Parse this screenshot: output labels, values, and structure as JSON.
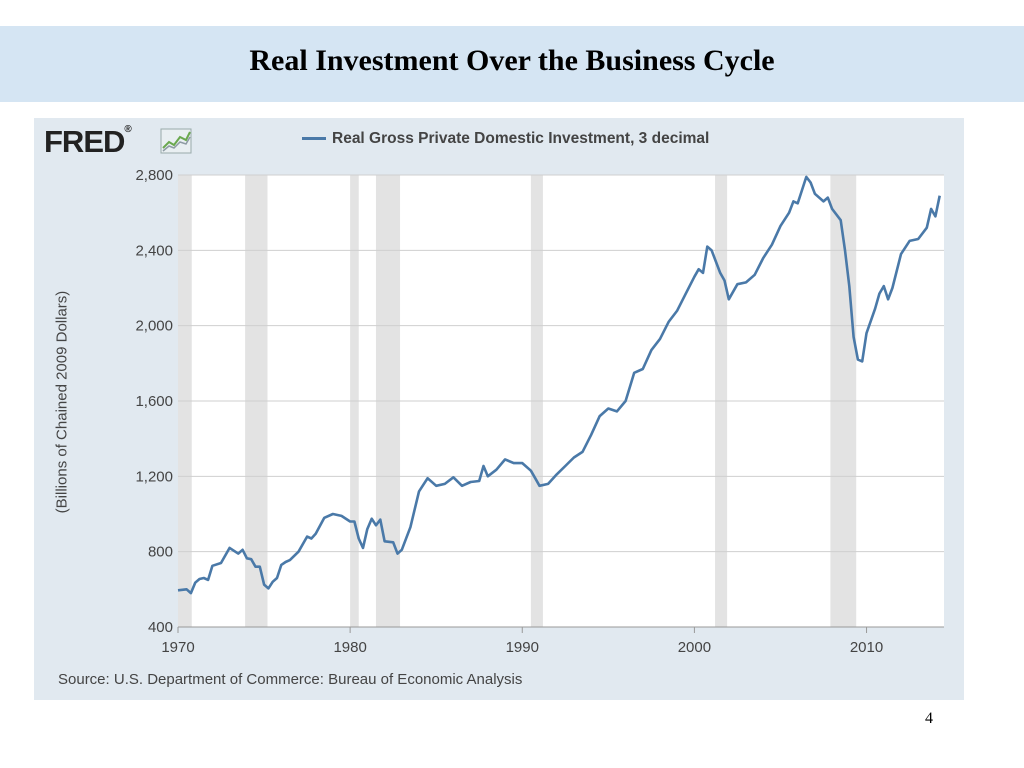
{
  "slide": {
    "title": "Real Investment Over the Business Cycle",
    "page_number": "4"
  },
  "logo": {
    "text": "FRED",
    "reg": "®"
  },
  "source": "Source: U.S. Department of Commerce: Bureau of Economic Analysis",
  "colors": {
    "header_bg": "#d5e5f3",
    "panel_bg": "#e1e9f0",
    "plot_bg": "#ffffff",
    "line": "#4a79a8",
    "recession": "#e3e3e3"
  },
  "chart_data": {
    "type": "line",
    "title": "",
    "xlabel": "",
    "ylabel": "(Billions of Chained 2009 Dollars)",
    "xlim": [
      1970,
      2014.5
    ],
    "ylim": [
      400,
      2800
    ],
    "x_ticks": [
      1970,
      1980,
      1990,
      2000,
      2010
    ],
    "x_tick_labels": [
      "1970",
      "1980",
      "1990",
      "2000",
      "2010"
    ],
    "y_ticks": [
      400,
      800,
      1200,
      1600,
      2000,
      2400,
      2800
    ],
    "y_tick_labels": [
      "400",
      "800",
      "1,200",
      "1,600",
      "2,000",
      "2,400",
      "2,800"
    ],
    "grid": "horizontal",
    "legend": "top",
    "recessions": [
      [
        1970.0,
        1970.8
      ],
      [
        1973.9,
        1975.2
      ],
      [
        1980.0,
        1980.5
      ],
      [
        1981.5,
        1982.9
      ],
      [
        1990.5,
        1991.2
      ],
      [
        2001.2,
        2001.9
      ],
      [
        2007.9,
        2009.4
      ]
    ],
    "series": [
      {
        "name": "Real Gross Private Domestic Investment, 3 decimal",
        "x": [
          1970.0,
          1970.5,
          1970.75,
          1971.0,
          1971.25,
          1971.5,
          1971.75,
          1972.0,
          1972.5,
          1973.0,
          1973.5,
          1973.75,
          1974.0,
          1974.25,
          1974.5,
          1974.75,
          1975.0,
          1975.25,
          1975.5,
          1975.75,
          1976.0,
          1976.25,
          1976.5,
          1977.0,
          1977.5,
          1977.75,
          1978.0,
          1978.5,
          1979.0,
          1979.5,
          1980.0,
          1980.25,
          1980.5,
          1980.75,
          1981.0,
          1981.25,
          1981.5,
          1981.75,
          1982.0,
          1982.5,
          1982.75,
          1983.0,
          1983.5,
          1984.0,
          1984.5,
          1985.0,
          1985.5,
          1986.0,
          1986.5,
          1987.0,
          1987.5,
          1987.75,
          1988.0,
          1988.5,
          1989.0,
          1989.5,
          1990.0,
          1990.5,
          1990.75,
          1991.0,
          1991.5,
          1992.0,
          1992.5,
          1993.0,
          1993.5,
          1994.0,
          1994.5,
          1995.0,
          1995.5,
          1996.0,
          1996.5,
          1997.0,
          1997.5,
          1998.0,
          1998.5,
          1999.0,
          1999.5,
          2000.0,
          2000.25,
          2000.5,
          2000.75,
          2001.0,
          2001.5,
          2001.75,
          2002.0,
          2002.5,
          2003.0,
          2003.5,
          2004.0,
          2004.5,
          2005.0,
          2005.5,
          2005.75,
          2006.0,
          2006.25,
          2006.5,
          2006.75,
          2007.0,
          2007.5,
          2007.75,
          2008.0,
          2008.5,
          2008.75,
          2009.0,
          2009.25,
          2009.5,
          2009.75,
          2010.0,
          2010.5,
          2010.75,
          2011.0,
          2011.25,
          2011.5,
          2012.0,
          2012.5,
          2013.0,
          2013.5,
          2013.75,
          2014.0,
          2014.25
        ],
        "y": [
          595,
          600,
          580,
          635,
          655,
          660,
          650,
          725,
          740,
          820,
          790,
          810,
          765,
          760,
          720,
          720,
          625,
          605,
          640,
          660,
          730,
          745,
          755,
          800,
          880,
          870,
          895,
          980,
          1000,
          990,
          960,
          960,
          870,
          820,
          920,
          975,
          940,
          970,
          855,
          850,
          790,
          810,
          930,
          1120,
          1190,
          1150,
          1160,
          1195,
          1150,
          1170,
          1175,
          1255,
          1200,
          1235,
          1290,
          1270,
          1270,
          1230,
          1190,
          1150,
          1160,
          1210,
          1255,
          1300,
          1330,
          1420,
          1520,
          1560,
          1545,
          1600,
          1750,
          1770,
          1870,
          1930,
          2020,
          2080,
          2170,
          2260,
          2300,
          2280,
          2420,
          2400,
          2280,
          2240,
          2140,
          2220,
          2230,
          2270,
          2360,
          2430,
          2530,
          2600,
          2660,
          2650,
          2720,
          2790,
          2760,
          2700,
          2660,
          2680,
          2620,
          2560,
          2400,
          2210,
          1940,
          1820,
          1810,
          1960,
          2090,
          2170,
          2210,
          2140,
          2200,
          2380,
          2450,
          2460,
          2520,
          2620,
          2580,
          2690
        ]
      }
    ]
  }
}
